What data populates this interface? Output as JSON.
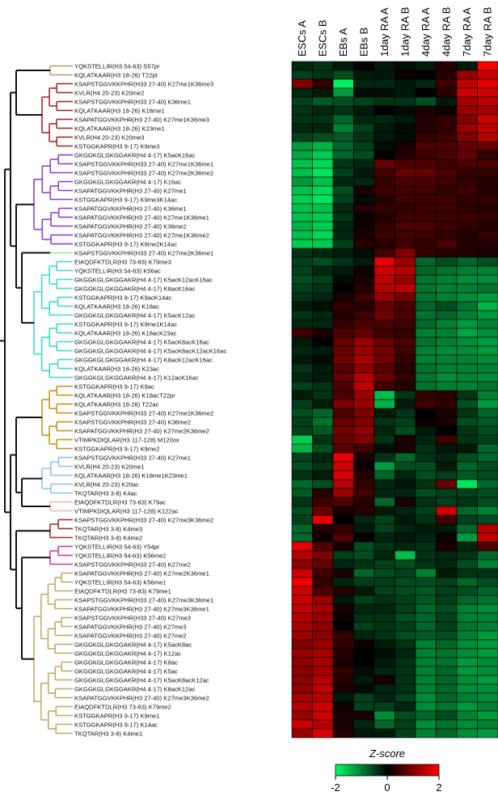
{
  "chart_data": {
    "type": "heatmap",
    "columns": [
      "ESCs A",
      "ESCs B",
      "EBs A",
      "EBs B",
      "1day RA A",
      "1day RA B",
      "4day RA A",
      "4day RA B",
      "7day RA A",
      "7day RA B"
    ],
    "rows": [
      "YQKSTELLIR(H3 54-63) S57pr",
      "KQLATKAAR(H3 18-26) T22pt",
      "KSAPSTGGVKKPHR(H33 27-40) K27me1K36me3",
      "KVLR(H4 20-23) K20me2",
      "KSAPSTGGVKKPHR(H33 27-40) K36me1",
      "KQLATKAAR(H3 18-26) K18me1",
      "KSAPATGGVKKPHR(H3 27-40) K27me1K36me3",
      "KQLATKAAR(H3 18-26) K23me1",
      "KVLR(H4 20-23) K20me3",
      "KSTGGKAPR(H3 9-17) K9me3",
      "GKGGKGLGKGGAKR(H4 4-17) K5acK16ac",
      "KSAPSTGGVKKPHR(H33 27-40) K27me1K36me1",
      "KSAPSTGGVKKPHR(H33 27-40) K27me2K36me2",
      "GKGGKGLGKGGAKR(H4 4-17) K16ac",
      "KSAPATGGVKKPHR(H3 27-40) K27me1",
      "KSTGGKAPR(H3 9-17) K9me3K14ac",
      "KSAPATGGVKKPHR(H3 27-40) K36me1",
      "KSAPATGGVKKPHR(H3 27-40) K27me1K36me1",
      "KSAPATGGVKKPHR(H3 27-40) K36me2",
      "KSAPATGGVKKPHR(H3 27-40) K27me1K36me2",
      "KSTGGKAPR(H3 9-17) K9me2K14ac",
      "KSAPSTGGVKKPHR(H33 27-40) K27me2K36me1",
      "EIAQDFKTDLR(H3 73-83) K79me3",
      "YQKSTELLIR(H3 54-63) K56ac",
      "GKGGKGLGKGGAKR(H4 4-17) K5acK12acK16ac",
      "GKGGKGLGKGGAKR(H4 4-17) K8acK16ac",
      "KSTGGKAPR(H3 9-17) K9acK14ac",
      "KQLATKAAR(H3 18-26) K18ac",
      "GKGGKGLGKGGAKR(H4 4-17) K5acK12ac",
      "KSTGGKAPR(H3 9-17) K9me1K14ac",
      "KQLATKAAR(H3 18-26) K18acK23ac",
      "GKGGKGLGKGGAKR(H4 4-17) K5acK8acK16ac",
      "GKGGKGLGKGGAKR(H4 4-17) K5acK8acK12acK16ac",
      "GKGGKGLGKGGAKR(H4 4-17) K8acK12acK16ac",
      "KQLATKAAR(H3 18-26) K23ac",
      "GKGGKGLGKGGAKR(H4 4-17) K12acK16ac",
      "KSTGGKAPR(H3 9-17) K9ac",
      "KQLATKAAR(H3 18-26) K18acT22pr",
      "KQLATKAAR(H3 18-26) T22ac",
      "KSAPSTGGVKKPHR(H33 27-40) K27me1K36me2",
      "KSAPSTGGVKKPHR(H33 27-40) K36me2",
      "KSAPATGGVKKPHR(H3 27-40) K27me2K36me2",
      "VTIMPKDIQLAR(H3 117-128) M120ox",
      "KSTGGKAPR(H3 9-17) K9me2",
      "KSAPSTGGVKKPHR(H33 27-40) K27me1",
      "KVLR(H4 20-23) K20me1",
      "KQLATKAAR(H3 18-26) K18me1K23me1",
      "KVLR(H4 20-23) K20ac",
      "TKQTAR(H3 3-8) K4ac",
      "EIAQDFKTDLR(H3 73-83) K79ac",
      "VTIMPKDIQLAR(H3 117-128) K122ac",
      "KSAPSTGGVKKPHR(H33 27-40) K27me3K36me2",
      "TKQTAR(H3 3-8) K4me3",
      "TKQTAR(H3 3-8) K4me2",
      "YQKSTELLIR(H3 54-63) Y54pr",
      "YQKSTELLIR(H3 54-63) K56me2",
      "KSAPSTGGVKKPHR(H33 27-40) K27me2",
      "KSAPATGGVKKPHR(H3 27-40) K27me2K36me1",
      "YQKSTELLIR(H3 54-63) K56me1",
      "EIAQDFKTDLR(H3 73-83) K79me1",
      "KSAPSTGGVKKPHR(H33 27-40) K27me3K36me1",
      "KSAPATGGVKKPHR(H3 27-40) K27me3K36me1",
      "KSAPSTGGVKKPHR(H33 27-40) K27me3",
      "KSAPATGGVKKPHR(H3 27-40) K27me3",
      "KSAPATGGVKKPHR(H3 27-40) K27me2",
      "GKGGKGLGKGGAKR(H4 4-17) K5acK8ac",
      "GKGGKGLGKGGAKR(H4 4-17) K12ac",
      "GKGGKGLGKGGAKR(H4 4-17) K8ac",
      "GKGGKGLGKGGAKR(H4 4-17) K5ac",
      "GKGGKGLGKGGAKR(H4 4-17) K5acK8acK12ac",
      "GKGGKGLGKGGAKR(H4 4-17) K8acK12ac",
      "KSAPATGGVKKPHR(H3 27-40) K27me3K36me2",
      "EIAQDFKTDLR(H3 73-83) K79me2",
      "KSTGGKAPR(H3 9-17) K9me1",
      "KSTGGKAPR(H3 9-17) K14ac",
      "TKQTAR(H3 3-8) K4me1"
    ],
    "values": [
      [
        -0.3,
        -0.4,
        -0.2,
        0.0,
        -0.2,
        -0.1,
        -0.2,
        0.3,
        -0.2,
        2.0
      ],
      [
        -0.5,
        -0.4,
        -0.6,
        -0.2,
        -0.2,
        0.1,
        0.0,
        0.3,
        1.2,
        1.6
      ],
      [
        1.0,
        0.4,
        -1.9,
        -0.3,
        -0.3,
        -0.2,
        -0.3,
        0.5,
        1.5,
        1.8
      ],
      [
        -0.3,
        -0.2,
        -1.2,
        -0.1,
        -0.1,
        -0.2,
        0.0,
        0.3,
        1.6,
        1.6
      ],
      [
        -0.5,
        -0.7,
        -0.6,
        -0.5,
        -0.4,
        -0.4,
        -0.6,
        -0.2,
        1.3,
        1.5
      ],
      [
        -0.4,
        -0.3,
        -0.4,
        -0.2,
        0.0,
        -0.1,
        0.2,
        0.1,
        1.2,
        1.3
      ],
      [
        -0.4,
        -0.4,
        -0.8,
        -0.3,
        -0.3,
        -0.2,
        0.3,
        0.4,
        1.0,
        1.6
      ],
      [
        -0.3,
        -0.3,
        -1.0,
        -0.5,
        -0.2,
        -0.1,
        0.3,
        0.4,
        1.2,
        1.5
      ],
      [
        -0.5,
        -0.6,
        -0.7,
        -0.4,
        -0.2,
        -0.1,
        0.4,
        0.5,
        1.0,
        1.4
      ],
      [
        -1.2,
        -1.4,
        -0.8,
        -0.5,
        -0.1,
        0.2,
        0.6,
        0.6,
        0.8,
        0.8
      ],
      [
        -1.3,
        -1.6,
        -0.8,
        -0.6,
        0.0,
        0.3,
        0.5,
        0.6,
        0.8,
        0.4
      ],
      [
        -1.5,
        -1.7,
        -0.4,
        -0.3,
        0.8,
        0.6,
        0.6,
        0.5,
        0.6,
        0.6
      ],
      [
        -1.5,
        -1.8,
        -0.5,
        -0.2,
        0.5,
        0.8,
        0.8,
        0.6,
        0.4,
        0.4
      ],
      [
        -1.2,
        -1.5,
        -0.3,
        -0.3,
        0.4,
        0.6,
        0.6,
        0.5,
        0.4,
        0.3
      ],
      [
        -1.5,
        -1.7,
        -0.6,
        0.2,
        0.5,
        0.5,
        0.5,
        0.4,
        0.5,
        0.3
      ],
      [
        -1.6,
        -1.8,
        -0.5,
        -0.1,
        0.3,
        0.5,
        0.5,
        0.5,
        0.4,
        0.4
      ],
      [
        -1.5,
        -1.5,
        -0.3,
        0.3,
        0.4,
        0.4,
        0.5,
        0.5,
        0.4,
        0.3
      ],
      [
        -1.5,
        -1.6,
        -0.4,
        0.1,
        0.3,
        0.5,
        0.5,
        0.5,
        0.5,
        0.4
      ],
      [
        -1.4,
        -1.6,
        -0.3,
        0.1,
        0.4,
        0.6,
        0.6,
        0.5,
        0.4,
        0.3
      ],
      [
        -1.5,
        -1.7,
        -0.3,
        0.2,
        0.5,
        0.5,
        0.5,
        0.4,
        0.3,
        0.4
      ],
      [
        -1.6,
        -1.6,
        -0.5,
        0.3,
        0.3,
        0.5,
        0.4,
        0.6,
        0.3,
        0.3
      ],
      [
        -0.4,
        -0.3,
        -0.2,
        -0.1,
        0.5,
        1.0,
        0.4,
        0.3,
        0.3,
        0.2
      ],
      [
        -0.5,
        -0.6,
        -0.4,
        -0.2,
        1.8,
        1.2,
        -0.8,
        -0.6,
        -0.8,
        -0.6
      ],
      [
        -0.5,
        -0.3,
        -0.2,
        0.1,
        1.6,
        1.4,
        -0.8,
        -0.9,
        -1.0,
        -1.0
      ],
      [
        -0.6,
        -0.5,
        -0.1,
        0.2,
        1.5,
        1.2,
        -0.9,
        -1.0,
        -1.1,
        -1.1
      ],
      [
        -0.5,
        -0.4,
        0.0,
        0.3,
        1.4,
        1.5,
        -0.9,
        -1.0,
        -1.0,
        -0.9
      ],
      [
        -0.4,
        -0.3,
        0.2,
        0.5,
        1.2,
        0.9,
        -0.9,
        -1.0,
        -1.1,
        -1.2
      ],
      [
        -0.2,
        -0.1,
        0.4,
        0.3,
        0.8,
        0.6,
        -0.8,
        -0.6,
        -0.9,
        -1.4
      ],
      [
        -0.4,
        -0.3,
        0.3,
        0.5,
        0.9,
        0.6,
        -0.9,
        -0.8,
        -1.0,
        -1.2
      ],
      [
        -0.3,
        -0.3,
        0.4,
        0.6,
        0.6,
        0.5,
        -0.8,
        -1.0,
        -1.2,
        -1.0
      ],
      [
        0.5,
        0.2,
        0.6,
        0.8,
        0.5,
        0.4,
        -1.0,
        -1.0,
        -1.3,
        -1.1
      ],
      [
        -0.2,
        0.0,
        0.8,
        1.2,
        0.8,
        0.6,
        -0.9,
        -1.0,
        -1.1,
        -1.2
      ],
      [
        -0.3,
        -0.2,
        0.8,
        1.2,
        0.9,
        0.5,
        -1.0,
        -1.1,
        -1.1,
        -1.2
      ],
      [
        -0.2,
        -0.1,
        0.9,
        1.3,
        0.9,
        0.4,
        -1.0,
        -1.0,
        -1.0,
        -1.1
      ],
      [
        -0.4,
        -0.2,
        0.7,
        1.1,
        0.7,
        0.3,
        -0.9,
        -1.0,
        -1.0,
        -1.0
      ],
      [
        -0.3,
        -0.2,
        0.8,
        1.4,
        0.8,
        0.4,
        -0.9,
        -1.1,
        -1.0,
        -1.1
      ],
      [
        -0.5,
        -0.4,
        0.6,
        1.5,
        0.5,
        0.3,
        -0.9,
        -1.0,
        -1.0,
        -0.9
      ],
      [
        -0.2,
        -0.4,
        0.6,
        1.2,
        -1.5,
        -0.4,
        0.4,
        0.3,
        -0.4,
        -1.0
      ],
      [
        -0.5,
        -0.2,
        1.0,
        1.2,
        -1.4,
        -0.2,
        0.5,
        0.4,
        -0.6,
        -1.2
      ],
      [
        -0.6,
        -0.8,
        0.6,
        1.0,
        -0.2,
        -0.4,
        0.0,
        0.2,
        -0.4,
        -0.8
      ],
      [
        -0.5,
        -0.9,
        0.8,
        1.0,
        -0.4,
        -0.5,
        0.1,
        0.2,
        -0.6,
        -0.7
      ],
      [
        -0.5,
        -0.7,
        0.9,
        1.1,
        -0.3,
        -0.6,
        -0.2,
        0.0,
        -0.4,
        -0.6
      ],
      [
        -1.6,
        -0.4,
        0.8,
        1.0,
        -0.4,
        0.2,
        -0.3,
        0.5,
        -0.4,
        -0.5
      ],
      [
        -1.4,
        -0.6,
        0.7,
        0.5,
        -0.1,
        0.2,
        -0.4,
        -0.2,
        -0.2,
        -0.8
      ],
      [
        -0.5,
        -0.3,
        1.8,
        0.2,
        -0.4,
        -0.8,
        -0.4,
        -0.3,
        -0.6,
        -0.8
      ],
      [
        -0.6,
        -0.4,
        1.6,
        0.1,
        -1.2,
        -0.6,
        -0.6,
        -0.2,
        -0.8,
        -0.6
      ],
      [
        -0.4,
        -0.2,
        1.7,
        0.3,
        -0.8,
        -0.3,
        -0.6,
        -0.5,
        -0.7,
        -0.6
      ],
      [
        -0.8,
        -0.6,
        1.4,
        0.4,
        -0.3,
        -0.2,
        -0.4,
        0.8,
        -1.8,
        -0.8
      ],
      [
        -0.7,
        0.3,
        1.2,
        0.5,
        -0.3,
        -0.3,
        -0.6,
        -0.5,
        -0.5,
        -0.6
      ],
      [
        -0.4,
        0.5,
        0.6,
        0.3,
        -0.8,
        0.2,
        -0.4,
        -0.5,
        -0.4,
        -0.6
      ],
      [
        -0.6,
        0.8,
        0.2,
        0.3,
        -0.2,
        -0.3,
        -0.5,
        1.6,
        -0.8,
        -1.0
      ],
      [
        -0.5,
        1.8,
        0.0,
        -0.3,
        -0.5,
        -0.2,
        -0.4,
        0.5,
        -0.5,
        -0.6
      ],
      [
        -0.8,
        0.3,
        0.4,
        -0.2,
        -0.5,
        -0.3,
        -0.2,
        -0.2,
        -0.8,
        1.4
      ],
      [
        -0.8,
        0.1,
        0.6,
        0.0,
        -0.3,
        -0.2,
        -0.3,
        0.1,
        -1.2,
        1.5
      ],
      [
        1.8,
        0.6,
        0.2,
        -0.6,
        -0.4,
        -0.3,
        -0.4,
        0.2,
        -0.3,
        0.6
      ],
      [
        1.4,
        1.0,
        -0.5,
        -0.6,
        -0.3,
        -1.5,
        -0.4,
        -0.3,
        -0.4,
        -0.8
      ],
      [
        1.1,
        0.8,
        -0.3,
        -0.4,
        -0.5,
        -0.6,
        -0.4,
        -0.3,
        -0.6,
        -1.0
      ],
      [
        1.6,
        0.5,
        0.2,
        -0.8,
        -0.6,
        -0.5,
        -1.0,
        -0.2,
        -0.4,
        -0.4
      ],
      [
        1.9,
        0.4,
        -0.3,
        -0.5,
        -0.5,
        -0.6,
        -0.6,
        -0.5,
        -0.8,
        -0.6
      ],
      [
        1.6,
        0.6,
        0.3,
        -0.2,
        -0.5,
        -0.6,
        -0.7,
        -0.5,
        -0.6,
        -0.8
      ],
      [
        1.6,
        1.2,
        -0.2,
        -0.5,
        -0.4,
        -0.5,
        -0.7,
        -0.5,
        -0.8,
        -0.9
      ],
      [
        1.5,
        1.3,
        0.2,
        -0.3,
        -0.3,
        -0.5,
        -0.8,
        -0.6,
        -1.0,
        -1.1
      ],
      [
        1.4,
        1.2,
        0.1,
        -0.4,
        -0.4,
        -0.6,
        -0.8,
        -0.5,
        -1.0,
        -1.0
      ],
      [
        1.3,
        1.1,
        0.0,
        -0.5,
        -0.4,
        -0.5,
        -0.8,
        -0.5,
        -0.9,
        -1.0
      ],
      [
        1.2,
        1.1,
        0.4,
        -0.3,
        -0.4,
        -0.6,
        -0.7,
        -0.6,
        -1.0,
        -1.2
      ],
      [
        1.0,
        1.2,
        0.4,
        0.1,
        -0.2,
        -0.4,
        -1.0,
        -0.8,
        -1.1,
        -1.2
      ],
      [
        1.2,
        1.3,
        0.3,
        0.0,
        -0.1,
        -0.3,
        -1.0,
        -0.9,
        -1.1,
        -1.2
      ],
      [
        1.1,
        1.3,
        0.2,
        0.0,
        -0.2,
        -0.4,
        -1.0,
        -0.9,
        -1.2,
        -1.1
      ],
      [
        1.1,
        1.3,
        0.4,
        -0.1,
        -0.3,
        -0.4,
        -1.0,
        -0.8,
        -1.2,
        -1.1
      ],
      [
        1.1,
        1.4,
        0.3,
        -0.2,
        0.2,
        -0.4,
        -1.0,
        -0.8,
        -1.1,
        -1.2
      ],
      [
        1.1,
        1.5,
        0.2,
        -0.1,
        -0.3,
        -0.4,
        -1.0,
        -0.8,
        -1.1,
        -1.1
      ],
      [
        1.3,
        1.4,
        -0.2,
        -0.5,
        -0.3,
        -0.5,
        -1.1,
        -0.8,
        -1.0,
        -1.1
      ],
      [
        1.4,
        1.6,
        0.1,
        -0.5,
        -0.5,
        -0.3,
        -1.1,
        -0.9,
        -1.2,
        -1.0
      ],
      [
        1.2,
        1.6,
        0.2,
        0.2,
        -1.1,
        -0.6,
        -0.8,
        -0.6,
        -1.0,
        -1.2
      ],
      [
        1.6,
        1.4,
        0.2,
        -0.3,
        -0.8,
        -0.5,
        -1.1,
        -0.9,
        -1.1,
        -1.0
      ],
      [
        1.2,
        1.7,
        0.3,
        -0.2,
        -0.2,
        -0.5,
        -1.0,
        -0.8,
        -1.1,
        -1.2
      ]
    ],
    "colorbar": {
      "title": "Z-score",
      "min": -2,
      "max": 2,
      "tick_labels": [
        "-2",
        "0",
        "2"
      ],
      "low_color": "#00ff66",
      "mid_color": "#000000",
      "high_color": "#ff0000"
    },
    "dendrogram_cluster_colors": [
      {
        "rows": [
          0,
          1
        ],
        "color": "#b5a76a"
      },
      {
        "rows": [
          2,
          9
        ],
        "color": "#a52a2a"
      },
      {
        "rows": [
          10,
          20
        ],
        "color": "#8f3fd2"
      },
      {
        "rows": [
          21,
          21
        ],
        "color": "#9fe39a"
      },
      {
        "rows": [
          22,
          35
        ],
        "color": "#40d8d0"
      },
      {
        "rows": [
          36,
          43
        ],
        "color": "#c6961e"
      },
      {
        "rows": [
          44,
          48
        ],
        "color": "#88c8e8"
      },
      {
        "rows": [
          49,
          50
        ],
        "color": "#f2b5b8"
      },
      {
        "rows": [
          51,
          53
        ],
        "color": "#a52a2a"
      },
      {
        "rows": [
          54,
          56
        ],
        "color": "#d63aa6"
      },
      {
        "rows": [
          57,
          75
        ],
        "color": "#bfae6a"
      }
    ]
  }
}
